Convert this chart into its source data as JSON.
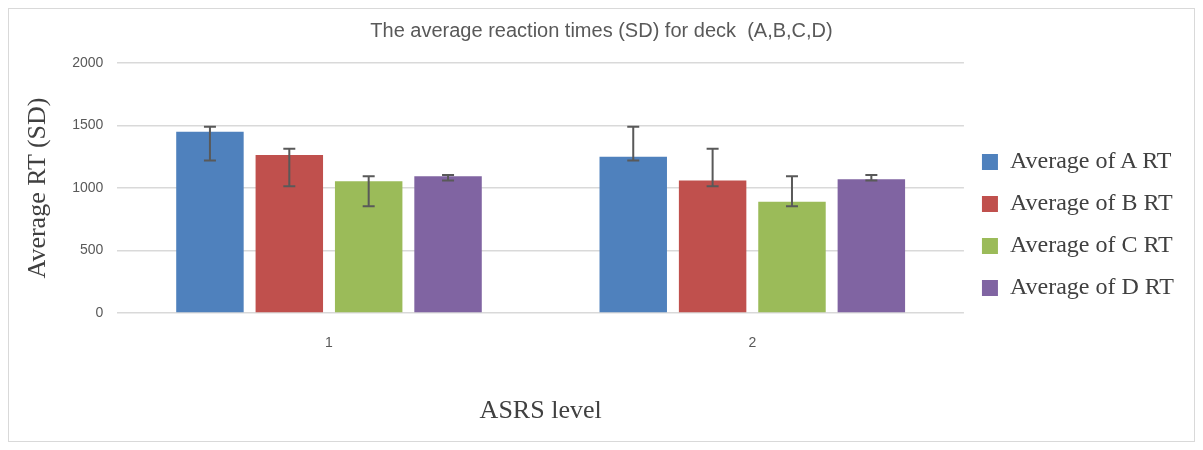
{
  "chart_data": {
    "type": "bar",
    "title": "The average reaction times (SD) for deck  (A,B,C,D)",
    "xlabel": "ASRS level",
    "ylabel": "Average RT (SD)",
    "categories": [
      "1",
      "2"
    ],
    "series": [
      {
        "name": "Average of A RT",
        "color": "#4f81bd",
        "values": [
          1450,
          1250
        ],
        "errors": [
          [
            1220,
            1490
          ],
          [
            1220,
            1490
          ]
        ]
      },
      {
        "name": "Average of B RT",
        "color": "#c0504d",
        "values": [
          1265,
          1060
        ],
        "errors": [
          [
            1015,
            1315
          ],
          [
            1015,
            1315
          ]
        ]
      },
      {
        "name": "Average of C RT",
        "color": "#9bbb59",
        "values": [
          1055,
          890
        ],
        "errors": [
          [
            855,
            1095
          ],
          [
            855,
            1095
          ]
        ]
      },
      {
        "name": "Average of D RT",
        "color": "#8064a2",
        "values": [
          1095,
          1070
        ],
        "errors": [
          [
            1060,
            1105
          ],
          [
            1060,
            1105
          ]
        ]
      }
    ],
    "ylim": [
      0,
      2000
    ],
    "yticks": [
      0,
      500,
      1000,
      1500,
      2000
    ],
    "grid": "y",
    "legend": "right"
  }
}
